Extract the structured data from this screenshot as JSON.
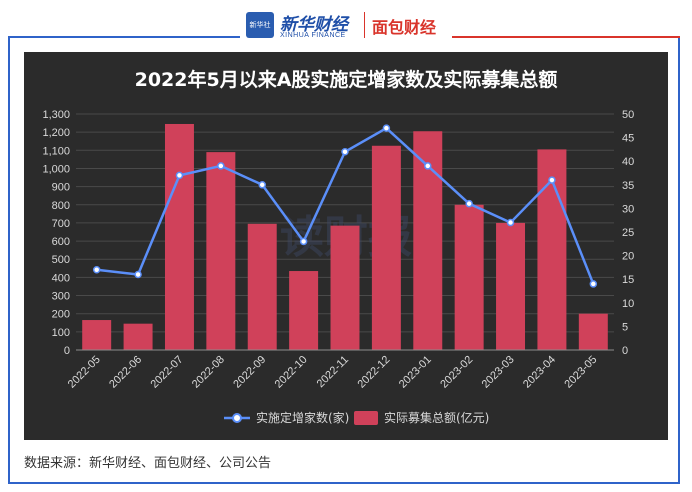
{
  "header": {
    "logo_xinhua": "新华财经",
    "logo_xinhua_sub": "XINHUA FINANCE",
    "logo_mianbao": "面包财经",
    "badge": "新华社"
  },
  "footer": {
    "source": "数据来源：新华财经、面包财经、公司公告"
  },
  "watermark": "读财报",
  "colors": {
    "panel": "#2b2b2b",
    "bar": "#d0415a",
    "line": "#5b8ff9",
    "grid": "#4a4a4a",
    "text": "#d9d9d9"
  },
  "chart_data": {
    "type": "bar",
    "title": "2022年5月以来A股实施定增家数及实际募集总额",
    "categories": [
      "2022-05",
      "2022-06",
      "2022-07",
      "2022-08",
      "2022-09",
      "2022-10",
      "2022-11",
      "2022-12",
      "2023-01",
      "2023-02",
      "2023-03",
      "2023-04",
      "2023-05"
    ],
    "series": [
      {
        "name": "实际募集总额(亿元)",
        "type": "bar",
        "axis": "left",
        "values": [
          165,
          145,
          1245,
          1090,
          695,
          435,
          685,
          1125,
          1205,
          800,
          700,
          1105,
          200
        ]
      },
      {
        "name": "实施定增家数(家)",
        "type": "line",
        "axis": "right",
        "values": [
          17,
          16,
          37,
          39,
          35,
          23,
          42,
          47,
          39,
          31,
          27,
          36,
          14
        ]
      }
    ],
    "ylim_left": [
      0,
      1300
    ],
    "yticks_left": [
      "0",
      "100",
      "200",
      "300",
      "400",
      "500",
      "600",
      "700",
      "800",
      "900",
      "1,000",
      "1,100",
      "1,200",
      "1,300"
    ],
    "ylim_right": [
      0,
      50
    ],
    "yticks_right": [
      "0",
      "5",
      "10",
      "15",
      "20",
      "25",
      "30",
      "35",
      "40",
      "45",
      "50"
    ],
    "legend_position": "bottom",
    "grid": true
  }
}
